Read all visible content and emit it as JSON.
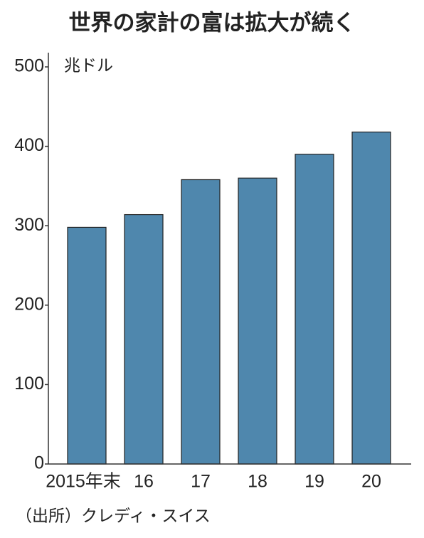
{
  "chart_data": {
    "type": "bar",
    "title": "世界の家計の富は拡大が続く",
    "y_axis_label": "兆ドル",
    "categories": [
      "2015年末",
      "16",
      "17",
      "18",
      "19",
      "20"
    ],
    "values": [
      298,
      314,
      358,
      360,
      390,
      418
    ],
    "color": "#4f87ad",
    "ylim": [
      0,
      500
    ],
    "yticks": [
      0,
      100,
      200,
      300,
      400,
      500
    ],
    "grid": false,
    "source": "（出所）クレディ・スイス"
  }
}
